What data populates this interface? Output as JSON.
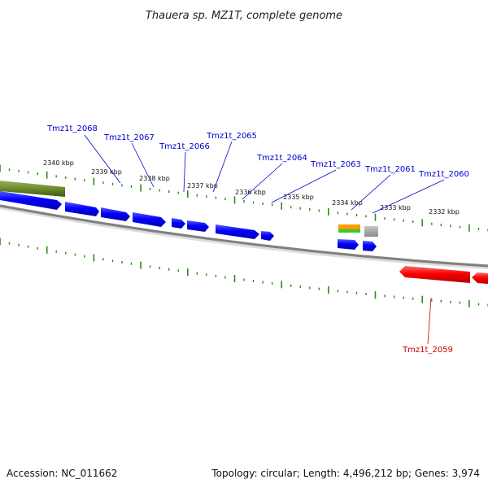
{
  "title": "Thauera sp. MZ1T, complete genome",
  "footer": {
    "accession": "Accession: NC_011662",
    "summary": "Topology: circular; Length: 4,496,212 bp; Genes: 3,974"
  },
  "colors": {
    "tick": "#2e8b1a",
    "upper_label": "#0000cc",
    "lower_label": "#cc0000",
    "forward_gene": "#0000ff",
    "reverse_gene": "#ff0000",
    "backbone": "#888888"
  },
  "kbp_labels": [
    "2340 kbp",
    "2339 kbp",
    "2338 kbp",
    "2337 kbp",
    "2336 kbp",
    "2335 kbp",
    "2334 kbp",
    "2333 kbp",
    "2332 kbp"
  ],
  "genes_upper": [
    "Tmz1t_2068",
    "Tmz1t_2067",
    "Tmz1t_2066",
    "Tmz1t_2065",
    "Tmz1t_2064",
    "Tmz1t_2063",
    "Tmz1t_2061",
    "Tmz1t_2060"
  ],
  "genes_lower": [
    "Tmz1t_2059"
  ]
}
